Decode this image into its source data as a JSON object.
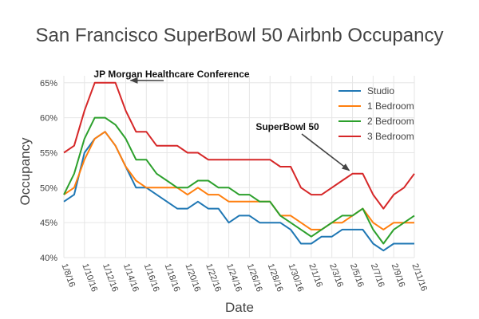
{
  "chart_data": {
    "type": "line",
    "title": "San Francisco SuperBowl 50 Airbnb Occupancy",
    "xlabel": "Date",
    "ylabel": "Occupancy",
    "ylim": [
      40,
      66
    ],
    "y_tick_values": [
      40,
      45,
      50,
      55,
      60,
      65
    ],
    "y_tick_labels": [
      "40%",
      "45%",
      "50%",
      "55%",
      "60%",
      "65%"
    ],
    "x_tick_labels": [
      "1/8/16",
      "1/10/16",
      "1/12/16",
      "1/14/16",
      "1/16/16",
      "1/18/16",
      "1/20/16",
      "1/22/16",
      "1/24/16",
      "1/26/16",
      "1/28/16",
      "1/30/16",
      "2/1/16",
      "2/3/16",
      "2/5/16",
      "2/7/16",
      "2/9/16",
      "2/11/16"
    ],
    "x": [
      "1/8/16",
      "1/9/16",
      "1/10/16",
      "1/11/16",
      "1/12/16",
      "1/13/16",
      "1/14/16",
      "1/15/16",
      "1/16/16",
      "1/17/16",
      "1/18/16",
      "1/19/16",
      "1/20/16",
      "1/21/16",
      "1/22/16",
      "1/23/16",
      "1/24/16",
      "1/25/16",
      "1/26/16",
      "1/27/16",
      "1/28/16",
      "1/29/16",
      "1/30/16",
      "1/31/16",
      "2/1/16",
      "2/2/16",
      "2/3/16",
      "2/4/16",
      "2/5/16",
      "2/6/16",
      "2/7/16",
      "2/8/16",
      "2/9/16",
      "2/10/16",
      "2/11/16"
    ],
    "grid": true,
    "legend_position": "top-right",
    "series": [
      {
        "name": "Studio",
        "color": "#1f77b4",
        "values": [
          48,
          49,
          55,
          57,
          58,
          56,
          53,
          50,
          50,
          49,
          48,
          47,
          47,
          48,
          47,
          47,
          45,
          46,
          46,
          45,
          45,
          45,
          44,
          42,
          42,
          43,
          43,
          44,
          44,
          44,
          42,
          41,
          42,
          42,
          42
        ]
      },
      {
        "name": "1 Bedroom",
        "color": "#ff7f0e",
        "values": [
          49,
          50,
          54,
          57,
          58,
          56,
          53,
          51,
          50,
          50,
          50,
          50,
          49,
          50,
          49,
          49,
          48,
          48,
          48,
          48,
          48,
          46,
          46,
          45,
          44,
          44,
          45,
          45,
          46,
          47,
          45,
          44,
          45,
          45,
          45
        ]
      },
      {
        "name": "2 Bedroom",
        "color": "#2ca02c",
        "values": [
          49,
          52,
          57,
          60,
          60,
          59,
          57,
          54,
          54,
          52,
          51,
          50,
          50,
          51,
          51,
          50,
          50,
          49,
          49,
          48,
          48,
          46,
          45,
          44,
          43,
          44,
          45,
          46,
          46,
          47,
          44,
          42,
          44,
          45,
          46
        ]
      },
      {
        "name": "3 Bedroom",
        "color": "#d62728",
        "values": [
          55,
          56,
          61,
          65,
          65,
          65,
          61,
          58,
          58,
          56,
          56,
          56,
          55,
          55,
          54,
          54,
          54,
          54,
          54,
          54,
          54,
          53,
          53,
          50,
          49,
          49,
          50,
          51,
          52,
          52,
          49,
          47,
          49,
          50,
          52
        ]
      }
    ],
    "annotations": [
      {
        "text": "JP Morgan Healthcare Conference",
        "x": "1/14/16",
        "y": 65
      },
      {
        "text": "SuperBowl 50",
        "x": "2/5/16",
        "y": 52
      }
    ]
  }
}
